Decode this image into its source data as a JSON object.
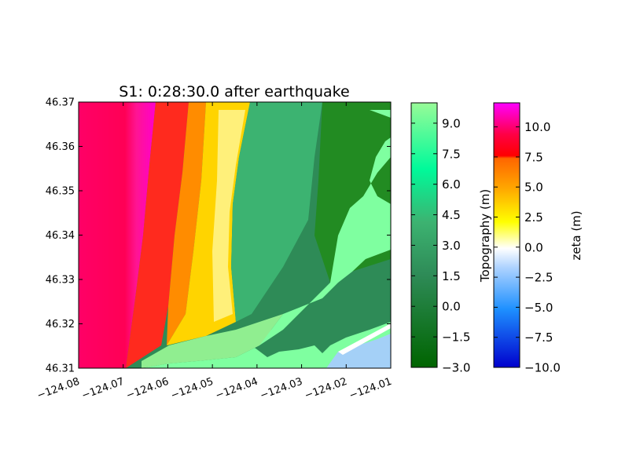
{
  "chart_data": [
    {
      "type": "heatmap",
      "title": "S1: 0:28:30.0 after earthquake",
      "xlabel": "",
      "ylabel": "",
      "xlim": [
        -124.08,
        -124.01
      ],
      "ylim": [
        46.31,
        46.37
      ],
      "x_ticks": [
        -124.08,
        -124.07,
        -124.06,
        -124.05,
        -124.04,
        -124.03,
        -124.02,
        -124.01
      ],
      "x_tick_labels": [
        "−124.08",
        "−124.07",
        "−124.06",
        "−124.05",
        "−124.04",
        "−124.03",
        "−124.02",
        "−124.01"
      ],
      "y_ticks": [
        46.31,
        46.32,
        46.33,
        46.34,
        46.35,
        46.36,
        46.37
      ],
      "y_tick_labels": [
        "46.31",
        "46.32",
        "46.33",
        "46.34",
        "46.35",
        "46.36",
        "46.37"
      ],
      "grid": false,
      "layers": [
        {
          "colorbar_label": "Topography (m)",
          "range": [
            -3.0,
            10.0
          ],
          "ticks": [
            -3.0,
            -1.5,
            0.0,
            1.5,
            3.0,
            4.5,
            6.0,
            7.5,
            9.0
          ],
          "tick_labels": [
            "−3.0",
            "−1.5",
            "0.0",
            "1.5",
            "3.0",
            "4.5",
            "6.0",
            "7.5",
            "9.0"
          ],
          "colors": [
            "#006400",
            "#228b22",
            "#3cb371",
            "#00fa9a",
            "#7fffa0",
            "#98fb98"
          ]
        },
        {
          "colorbar_label": "zeta (m)",
          "range": [
            -10.0,
            12.0
          ],
          "ticks": [
            -10.0,
            -7.5,
            -5.0,
            -2.5,
            0.0,
            2.5,
            5.0,
            7.5,
            10.0
          ],
          "tick_labels": [
            "−10.0",
            "−7.5",
            "−5.0",
            "−2.5",
            "0.0",
            "2.5",
            "5.0",
            "7.5",
            "10.0"
          ],
          "colors": [
            "#0000cd",
            "#1e90ff",
            "#87cefa",
            "#ffffff",
            "#ffff00",
            "#ffa500",
            "#ff6600",
            "#ff0000",
            "#ff00ff"
          ]
        }
      ]
    }
  ]
}
